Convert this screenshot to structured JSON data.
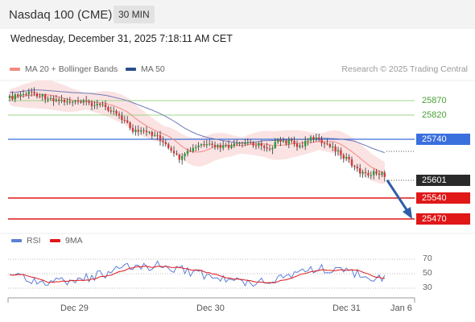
{
  "header": {
    "title": "Nasdaq 100 (CME)",
    "timeframe": "30 MIN"
  },
  "datetime": "Wednesday, December 31, 2025 7:18:11 AM CET",
  "legend": {
    "ma20": {
      "label": "MA 20 + Bollinger Bands",
      "color": "#f28b82"
    },
    "ma50": {
      "label": "MA 50",
      "color": "#2b4f8c"
    }
  },
  "copyright": "Research © 2025 Trading Central",
  "levels": {
    "r2": "25870",
    "r1": "25820",
    "pivot": "25740",
    "last": "25601",
    "s1": "25540",
    "s2": "25470"
  },
  "rsi_legend": {
    "rsi": {
      "label": "RSI",
      "color": "#5b7fd6"
    },
    "ma9": {
      "label": "9MA",
      "color": "#e01818"
    }
  },
  "rsi_ticks": {
    "t70": "70",
    "t50": "50",
    "t30": "30"
  },
  "x_labels": {
    "d1": "Dec 29",
    "d2": "Dec 30",
    "d3": "Dec 31",
    "d4": "Jan 6"
  },
  "colors": {
    "up": "#2a9d3a",
    "down": "#d23a3a",
    "band": "#fbe3e3",
    "arrow": "#2f5ea8"
  }
}
